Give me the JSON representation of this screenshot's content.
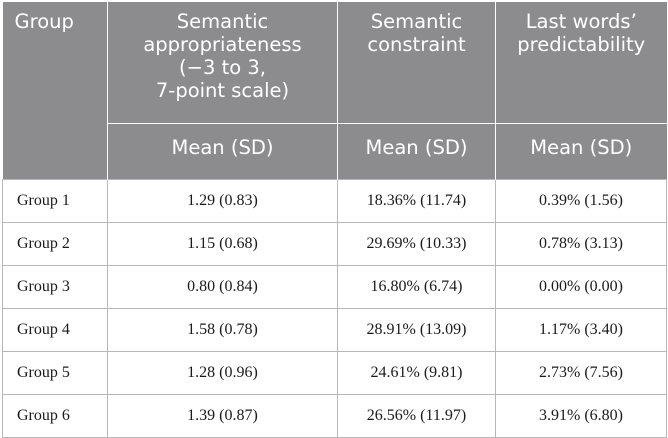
{
  "header": {
    "group": "Group",
    "col1": [
      "Semantic",
      "appropriateness",
      "(−3 to 3,",
      "7-point scale)"
    ],
    "col2": [
      "Semantic",
      "constraint"
    ],
    "col3": [
      "Last words’",
      "predictability"
    ],
    "sub": [
      "Mean (SD)",
      "Mean (SD)",
      "Mean (SD)"
    ]
  },
  "rows": [
    {
      "group": "Group 1",
      "appropriateness": "1.29 (0.83)",
      "constraint": "18.36% (11.74)",
      "predictability": "0.39% (1.56)"
    },
    {
      "group": "Group 2",
      "appropriateness": "1.15 (0.68)",
      "constraint": "29.69% (10.33)",
      "predictability": "0.78% (3.13)"
    },
    {
      "group": "Group 3",
      "appropriateness": "0.80 (0.84)",
      "constraint": "16.80% (6.74)",
      "predictability": "0.00% (0.00)"
    },
    {
      "group": "Group 4",
      "appropriateness": "1.58 (0.78)",
      "constraint": "28.91% (13.09)",
      "predictability": "1.17% (3.40)"
    },
    {
      "group": "Group 5",
      "appropriateness": "1.28 (0.96)",
      "constraint": "24.61% (9.81)",
      "predictability": "2.73% (7.56)"
    },
    {
      "group": "Group 6",
      "appropriateness": "1.39 (0.87)",
      "constraint": "26.56% (11.97)",
      "predictability": "3.91% (6.80)"
    }
  ]
}
